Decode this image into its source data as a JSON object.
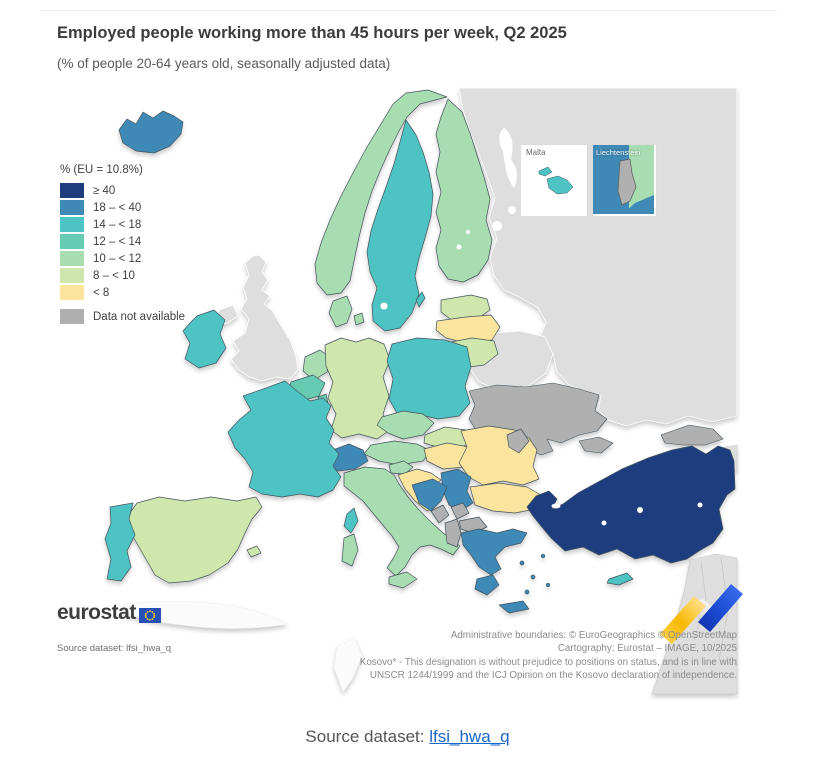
{
  "figure": {
    "title": "Employed people working more than 45 hours per week, Q2 2025",
    "subtitle": "(% of people 20-64 years old, seasonally adjusted data)"
  },
  "legend": {
    "title": "% (EU = 10.8%)",
    "items": [
      {
        "label": "≥ 40",
        "class": "ge40"
      },
      {
        "label": "18 – < 40",
        "class": "c18_40"
      },
      {
        "label": "14 – < 18",
        "class": "c14_18"
      },
      {
        "label": "12 – < 14",
        "class": "c12_14"
      },
      {
        "label": "10 – < 12",
        "class": "c10_12"
      },
      {
        "label": "8 – < 10",
        "class": "c8_10"
      },
      {
        "label": "< 8",
        "class": "lt8"
      }
    ],
    "na_label": "Data not available"
  },
  "palette": {
    "ge40": "#1e3d7f",
    "c18_40": "#3e89b6",
    "c14_18": "#4dc4c3",
    "c12_14": "#66cbb1",
    "c10_12": "#a8dcb1",
    "c8_10": "#cfe7ac",
    "lt8": "#fbe49d",
    "na": "#b0b0b0",
    "non_reporting": "#dedede",
    "sea": "#ffffff"
  },
  "map_data": {
    "type": "choropleth",
    "unit": "% of people 20-64 years old working more than 45 hours per week",
    "period": "Q2 2025",
    "eu_value": 10.8,
    "classes": {
      "IS": "c18_40",
      "NO": "c10_12",
      "SE": "c14_18",
      "FI": "c10_12",
      "EE": "c8_10",
      "LV": "lt8",
      "LT": "c8_10",
      "DK": "c10_12",
      "IE": "c14_18",
      "UK": "non_reporting",
      "DE": "c8_10",
      "NL": "c10_12",
      "BE": "c12_14",
      "LU": "c12_14",
      "FR": "c14_18",
      "CH": "c18_40",
      "AT": "c10_12",
      "CZ": "c10_12",
      "SK": "c8_10",
      "PL": "c14_18",
      "HU": "lt8",
      "SI": "c10_12",
      "HR": "lt8",
      "IT": "c10_12",
      "ES": "c8_10",
      "PT": "c14_18",
      "RO": "lt8",
      "BG": "lt8",
      "EL": "c18_40",
      "TR": "ge40",
      "CY": "c14_18",
      "MT": "c14_18",
      "RS": "c18_40",
      "BA": "c18_40",
      "ME": "na",
      "XK": "na",
      "MK": "na",
      "AL": "na",
      "UA": "na",
      "MD": "na",
      "GE": "na",
      "LI": "na",
      "RU": "non_reporting",
      "BY": "non_reporting"
    }
  },
  "insets": {
    "malta_label": "Malta",
    "liechtenstein_label": "Liechtenstein"
  },
  "footer": {
    "logo_text": "eurostat",
    "source_note": "Source dataset: lfsi_hwa_q",
    "attribution": [
      "Administrative boundaries: © EuroGeographics © OpenStreetMap",
      "Cartography: Eurostat – IMAGE, 10/2025",
      "Kosovo* - This designation is without prejudice to positions on status, and is in line with",
      "UNSCR 1244/1999 and the ICJ Opinion on the Kosovo declaration of independence."
    ]
  },
  "caption": {
    "prefix": "Source dataset: ",
    "link": "lfsi_hwa_q"
  }
}
